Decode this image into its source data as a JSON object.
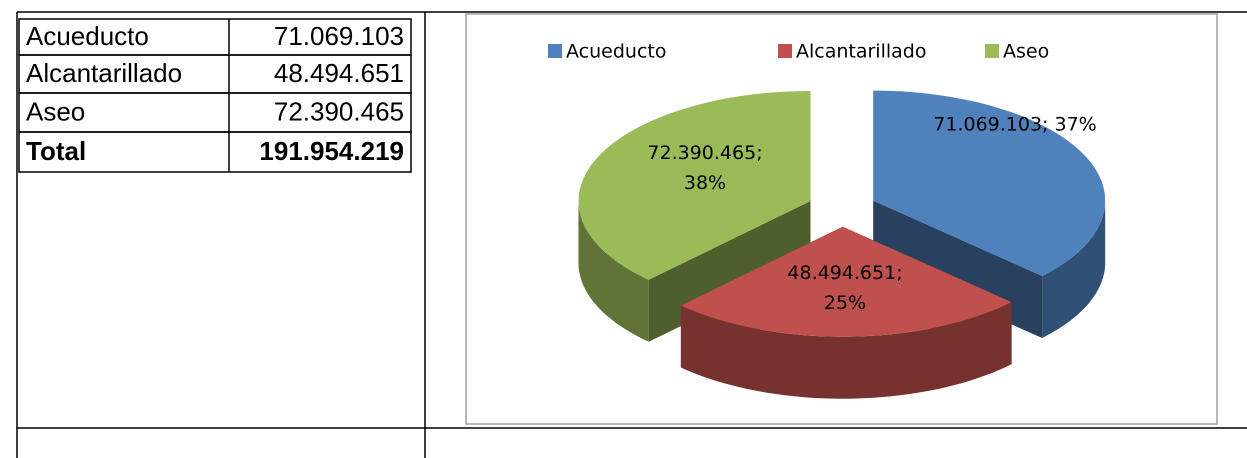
{
  "table": {
    "rows": [
      [
        "Acueducto",
        "71.069.103"
      ],
      [
        "Alcantarillado",
        "48.494.651"
      ],
      [
        "Aseo",
        "72.390.465"
      ],
      [
        "Total",
        "191.954.219"
      ]
    ]
  },
  "chart_data": {
    "type": "pie",
    "categories": [
      "Acueducto",
      "Alcantarillado",
      "Aseo"
    ],
    "values": [
      71069103,
      48494651,
      72390465
    ],
    "value_labels": [
      "71.069.103; 37%",
      "48.494.651; 25%",
      "72.390.465; 38%"
    ],
    "colors": [
      "#4f81bd",
      "#c0504d",
      "#9bbb59"
    ],
    "legend": "top"
  }
}
